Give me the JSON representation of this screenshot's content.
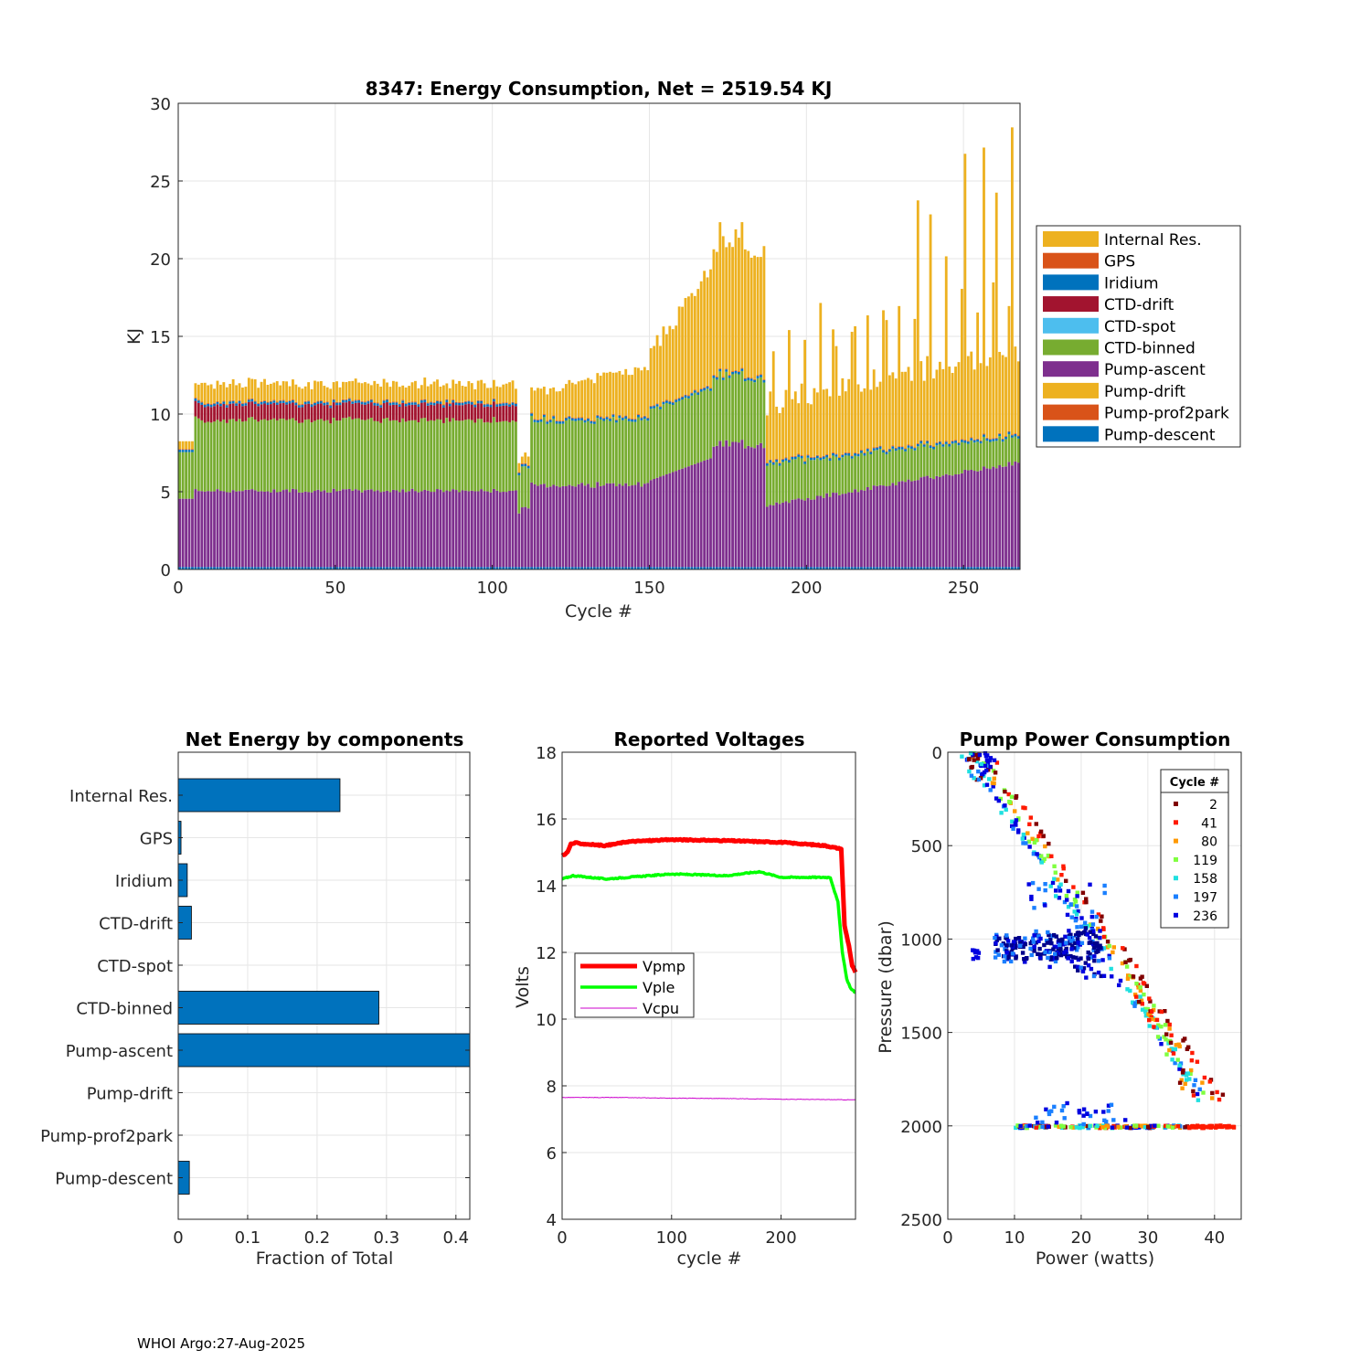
{
  "footer": "WHOI Argo:27-Aug-2025",
  "chart_data": [
    {
      "type": "bar",
      "stacked": true,
      "title": "8347: Energy Consumption,  Net = 2519.54 KJ",
      "xlabel": "Cycle #",
      "ylabel": "KJ",
      "xlim": [
        0,
        268
      ],
      "ylim": [
        0,
        30
      ],
      "xticks": [
        0,
        50,
        100,
        150,
        200,
        250
      ],
      "yticks": [
        0,
        5,
        10,
        15,
        20,
        25,
        30
      ],
      "legend_position": "outside-right",
      "legend": [
        "Internal Res.",
        "GPS",
        "Iridium",
        "CTD-drift",
        "CTD-spot",
        "CTD-binned",
        "Pump-ascent",
        "Pump-drift",
        "Pump-prof2park",
        "Pump-descent"
      ],
      "colors": {
        "Internal Res.": "#EDB120",
        "GPS": "#D95319",
        "Iridium": "#0072BD",
        "CTD-drift": "#A2142F",
        "CTD-spot": "#4DBEEE",
        "CTD-binned": "#77AC30",
        "Pump-ascent": "#7E2F8E",
        "Pump-drift": "#EDB120",
        "Pump-prof2park": "#D95319",
        "Pump-descent": "#0072BD"
      },
      "approx_profile": [
        {
          "cycles": "1-5",
          "pump_ascent": 4.4,
          "ctd_binned": 3.0,
          "total": 8.0
        },
        {
          "cycles": "6-110",
          "pump_ascent": 4.9,
          "ctd_binned": 4.5,
          "ctd_drift": 1.0,
          "internal_res": 0.8,
          "total": 11.0
        },
        {
          "cycles": "111-112",
          "pump_ascent": 3.3,
          "ctd_binned": 2.4,
          "total": 6.0
        },
        {
          "cycles": "113-150",
          "pump_ascent": 5.3,
          "ctd_binned": 4.0,
          "internal_res": 1.8,
          "total": 11.5
        },
        {
          "cycles": "151-170",
          "pump_ascent": 5.8,
          "ctd_binned": 4.5,
          "internal_res": 4.0,
          "total": 15.0
        },
        {
          "cycles": "171-187",
          "pump_ascent": 7.8,
          "ctd_binned": 4.3,
          "internal_res": 8.5,
          "total": 21.0
        },
        {
          "cycles": "188-268",
          "pump_ascent": "3.8 to 6.8",
          "ctd_binned": "2.5 to 1.5",
          "internal_res": "0 to 20",
          "total": "9 to 28.3 (spiky)"
        }
      ]
    },
    {
      "type": "bar",
      "orientation": "horizontal",
      "title": "Net Energy by components",
      "xlabel": "Fraction of Total",
      "ylabel": "",
      "xlim": [
        0,
        0.42
      ],
      "xticks": [
        0,
        0.1,
        0.2,
        0.3,
        0.4
      ],
      "xtick_labels": [
        "0",
        "0.1",
        "0.2",
        "0.3",
        "0.4"
      ],
      "categories": [
        "Internal Res.",
        "GPS",
        "Iridium",
        "CTD-drift",
        "CTD-spot",
        "CTD-binned",
        "Pump-ascent",
        "Pump-drift",
        "Pump-prof2park",
        "Pump-descent"
      ],
      "values": [
        0.233,
        0.004,
        0.013,
        0.019,
        0.0,
        0.289,
        0.43,
        0.0,
        0.0,
        0.016
      ],
      "color": "#0072BD"
    },
    {
      "type": "line",
      "title": "Reported Voltages",
      "xlabel": "cycle #",
      "ylabel": "Volts",
      "xlim": [
        0,
        268
      ],
      "ylim": [
        4,
        18
      ],
      "xticks": [
        0,
        100,
        200
      ],
      "yticks": [
        4,
        6,
        8,
        10,
        12,
        14,
        16,
        18
      ],
      "legend_position": "middle-left",
      "series": [
        {
          "name": "Vpmp",
          "color": "#FF0000",
          "x": [
            0,
            5,
            8,
            12,
            20,
            40,
            60,
            100,
            150,
            200,
            240,
            255,
            258,
            262,
            265,
            268
          ],
          "y": [
            14.9,
            15.0,
            15.25,
            15.28,
            15.25,
            15.2,
            15.32,
            15.38,
            15.35,
            15.3,
            15.2,
            15.1,
            12.8,
            12.2,
            11.6,
            11.4
          ]
        },
        {
          "name": "Vple",
          "color": "#00FF00",
          "x": [
            0,
            10,
            40,
            100,
            150,
            180,
            200,
            245,
            252,
            256,
            260,
            264,
            268
          ],
          "y": [
            14.2,
            14.3,
            14.2,
            14.35,
            14.3,
            14.42,
            14.25,
            14.25,
            13.5,
            12.0,
            11.2,
            10.9,
            10.8
          ]
        },
        {
          "name": "Vcpu",
          "color": "#CC00CC",
          "x": [
            0,
            50,
            100,
            150,
            200,
            268
          ],
          "y": [
            7.65,
            7.65,
            7.63,
            7.62,
            7.6,
            7.58
          ]
        }
      ]
    },
    {
      "type": "scatter",
      "title": "Pump Power Consumption",
      "xlabel": "Power (watts)",
      "ylabel": "Pressure (dbar)",
      "xlim": [
        0,
        44
      ],
      "ylim": [
        0,
        2500
      ],
      "y_reversed": true,
      "xticks": [
        0,
        10,
        20,
        30,
        40
      ],
      "yticks": [
        0,
        500,
        1000,
        1500,
        2000,
        2500
      ],
      "legend_title": "Cycle #",
      "legend_position": "top-right",
      "legend": [
        {
          "cycle": "2",
          "color": "#800000"
        },
        {
          "cycle": "41",
          "color": "#FF1A00"
        },
        {
          "cycle": "80",
          "color": "#FF9900"
        },
        {
          "cycle": "119",
          "color": "#80FF40"
        },
        {
          "cycle": "158",
          "color": "#20E0E0"
        },
        {
          "cycle": "197",
          "color": "#1A7FFF"
        },
        {
          "cycle": "236",
          "color": "#0000E0"
        }
      ],
      "groups": [
        {
          "label": "main ascent diagonal",
          "x_range": [
            3,
            40
          ],
          "y_range": [
            0,
            1850
          ],
          "note": "pressure rises ~50 dbar per watt"
        },
        {
          "label": "park cluster",
          "x_range": [
            3,
            24
          ],
          "y_range": [
            950,
            1250
          ],
          "colors": "dark blue"
        },
        {
          "label": "2000 dbar line",
          "x_range": [
            10,
            44
          ],
          "y_range": [
            1950,
            2015
          ],
          "colors": "mixed, red at high power"
        }
      ]
    }
  ]
}
